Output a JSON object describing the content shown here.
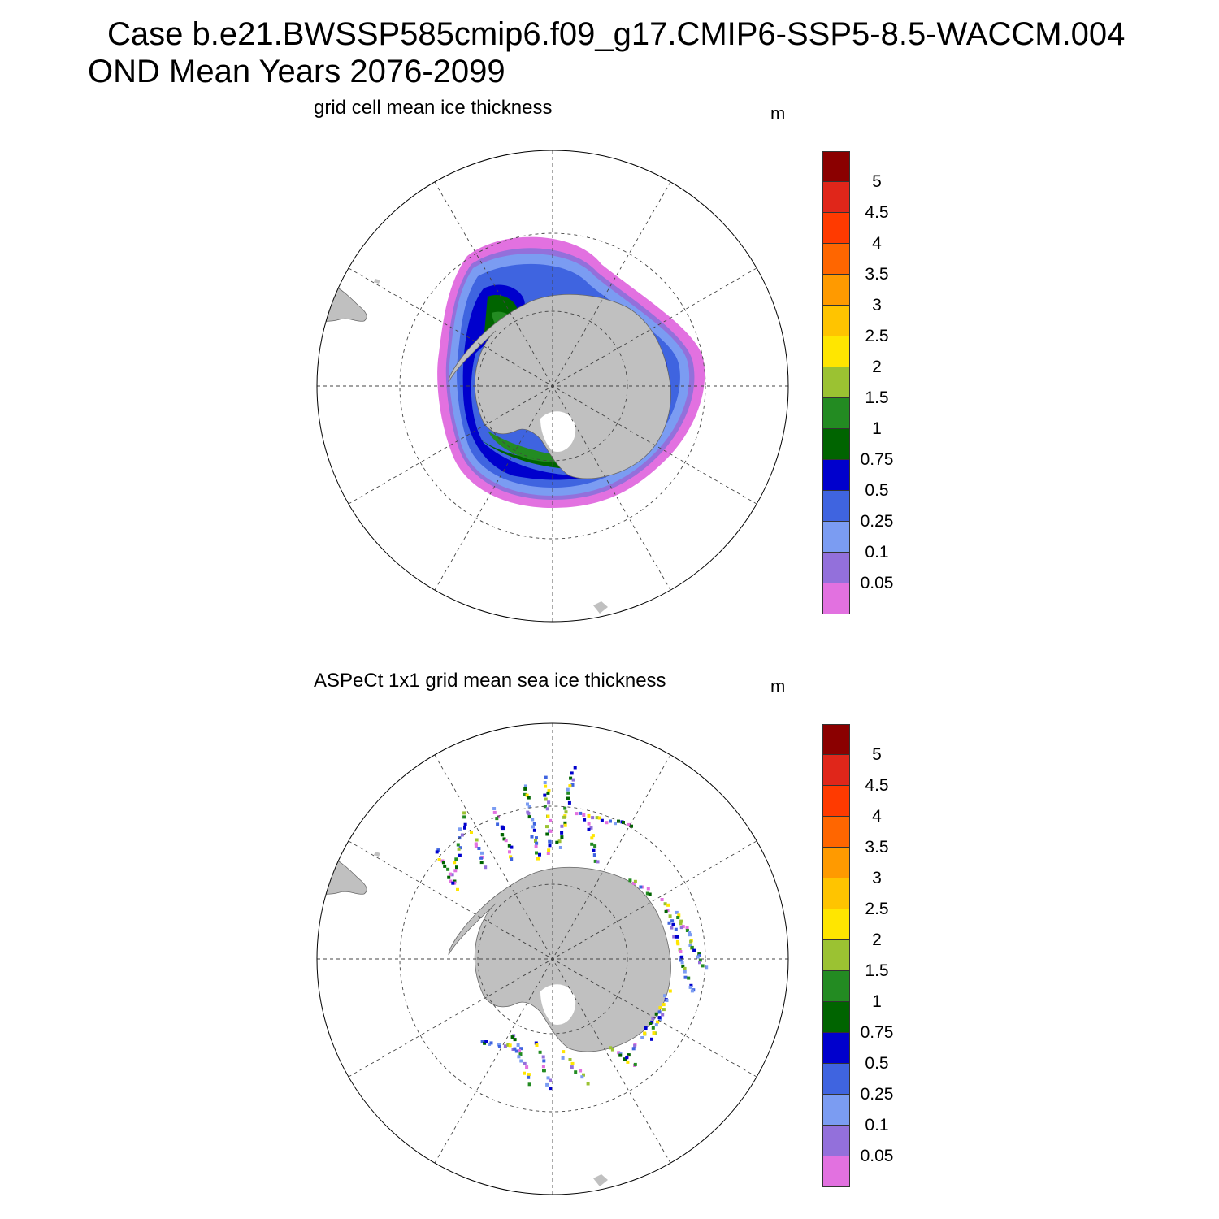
{
  "header": {
    "line1": "Case b.e21.BWSSP585cmip6.f09_g17.CMIP6-SSP5-8.5-WACCM.004",
    "line2": "OND Mean   Years 2076-2099"
  },
  "legend": {
    "levels": [
      "5",
      "4.5",
      "4",
      "3.5",
      "3",
      "2.5",
      "2",
      "1.5",
      "1",
      "0.75",
      "0.5",
      "0.25",
      "0.1",
      "0.05"
    ],
    "colors": [
      "#8b0000",
      "#e0261a",
      "#ff3a00",
      "#ff6600",
      "#ff9a00",
      "#ffc400",
      "#ffe600",
      "#9bc232",
      "#238b22",
      "#006400",
      "#0000cd",
      "#3f64e0",
      "#7b9cf2",
      "#9370db",
      "#e271e0"
    ]
  },
  "panels": [
    {
      "title": "grid cell mean ice thickness",
      "units": "m"
    },
    {
      "title": "ASPeCt 1x1 grid mean sea ice thickness",
      "units": "m"
    }
  ],
  "chart_data": {
    "type": "heatmap",
    "projection": "south polar stereographic",
    "land_color": "#c0c0c0",
    "grid": true,
    "colorbar": {
      "units": "m",
      "levels": [
        0.05,
        0.1,
        0.25,
        0.5,
        0.75,
        1,
        1.5,
        2,
        2.5,
        3,
        3.5,
        4,
        4.5,
        5
      ]
    }
  }
}
